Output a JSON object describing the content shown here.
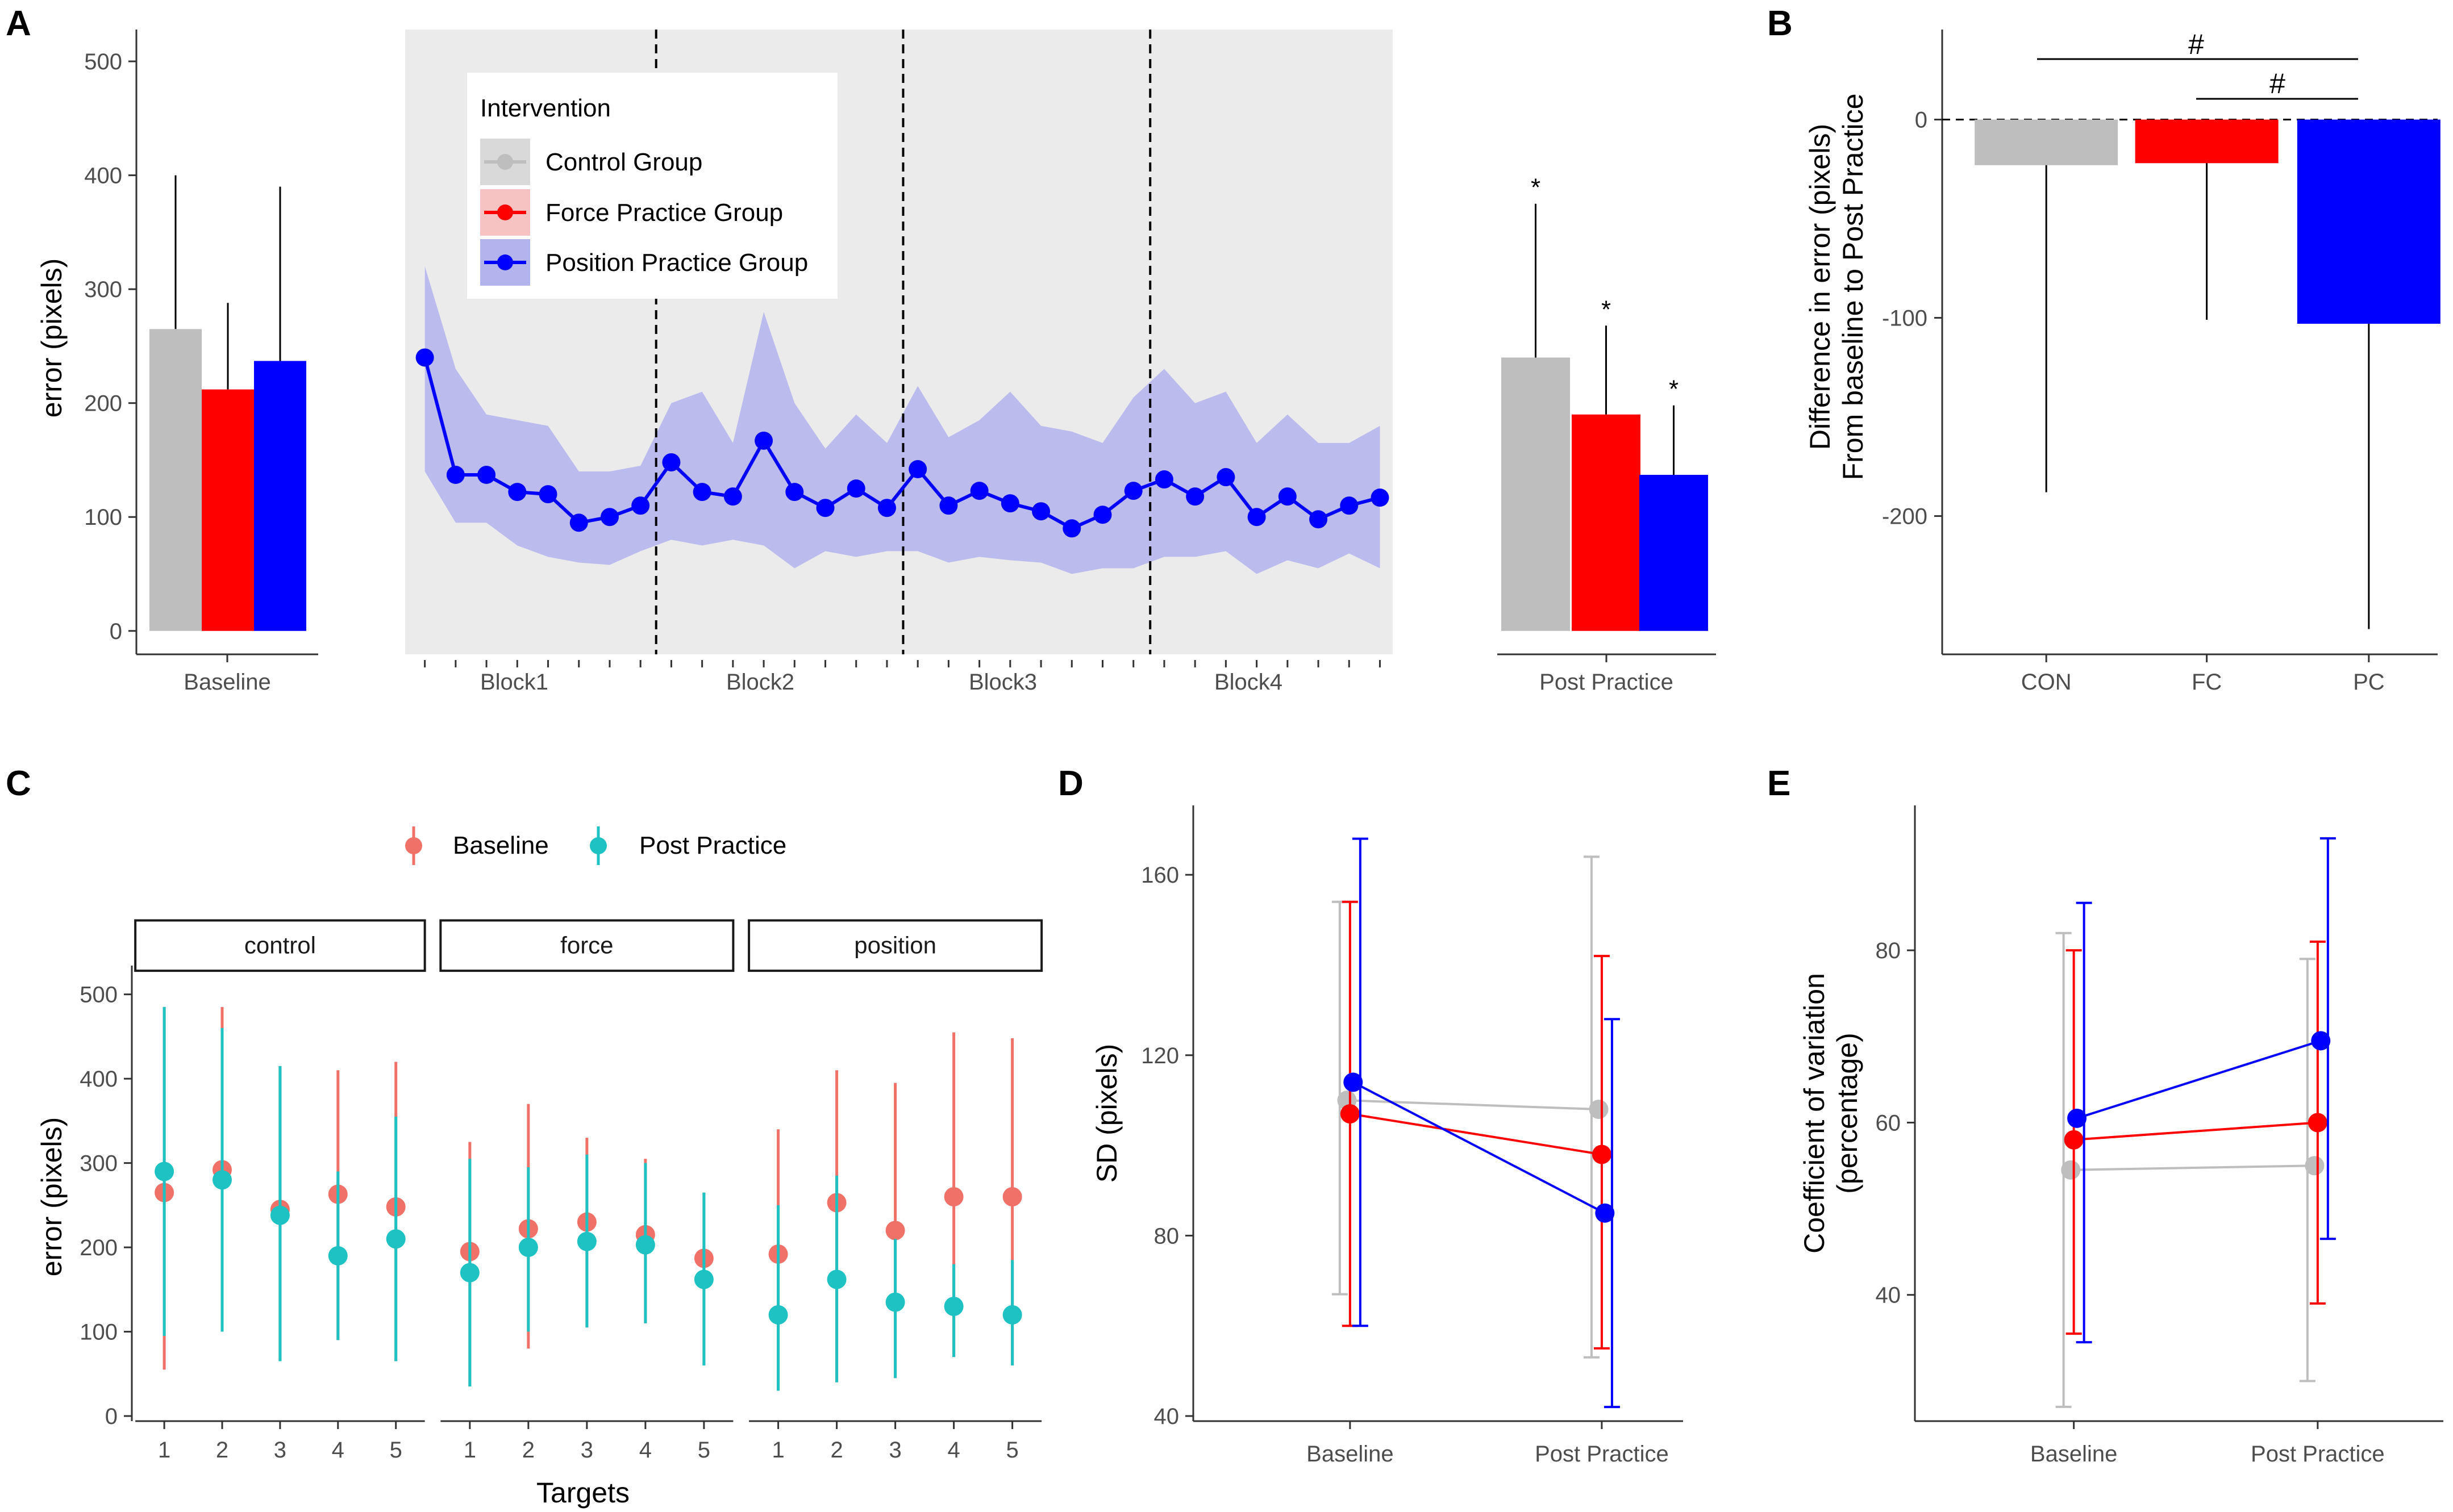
{
  "panel_labels": [
    "A",
    "B",
    "C",
    "D",
    "E"
  ],
  "colors": {
    "control": "#bebebe",
    "force": "#ff0000",
    "position": "#0000ff",
    "baseline": "#f07167",
    "post": "#1ec2c2",
    "panel_bg": "#ebebeb",
    "ribbon": "#b3b3ee"
  },
  "chart_data": [
    {
      "id": "A-baseline",
      "type": "bar",
      "ylabel": "error (pixels)",
      "xlabel": "Baseline",
      "ylim": [
        0,
        520
      ],
      "yticks": [
        "0",
        "100",
        "200",
        "300",
        "400",
        "500"
      ],
      "series": [
        {
          "name": "Control Group",
          "value": 265,
          "err_upper": 400
        },
        {
          "name": "Force Practice Group",
          "value": 212,
          "err_upper": 288
        },
        {
          "name": "Position Practice Group",
          "value": 237,
          "err_upper": 390
        }
      ]
    },
    {
      "id": "A-practice",
      "type": "line",
      "blocks": [
        "Block1",
        "Block2",
        "Block3",
        "Block4"
      ],
      "legend_title": "Intervention",
      "legend": [
        "Control Group",
        "Force Practice Group",
        "Position Practice Group"
      ],
      "ylim": [
        0,
        520
      ],
      "series": [
        {
          "name": "Position Practice Group",
          "values": [
            240,
            137,
            137,
            122,
            120,
            95,
            100,
            110,
            148,
            122,
            118,
            167,
            122,
            108,
            125,
            108,
            142,
            110,
            123,
            112,
            105,
            90,
            102,
            123,
            133,
            118,
            135,
            100,
            118,
            98,
            110,
            117
          ],
          "upper": [
            320,
            230,
            190,
            185,
            180,
            140,
            140,
            145,
            200,
            210,
            165,
            280,
            200,
            160,
            190,
            165,
            215,
            170,
            185,
            210,
            180,
            175,
            165,
            205,
            230,
            200,
            210,
            165,
            190,
            165,
            165,
            180
          ],
          "lower": [
            140,
            95,
            95,
            75,
            65,
            60,
            58,
            70,
            80,
            75,
            80,
            75,
            55,
            70,
            65,
            70,
            70,
            60,
            65,
            62,
            60,
            50,
            55,
            55,
            65,
            65,
            70,
            50,
            62,
            55,
            68,
            55
          ]
        }
      ]
    },
    {
      "id": "A-post",
      "type": "bar",
      "xlabel": "Post Practice",
      "ylim": [
        0,
        520
      ],
      "series": [
        {
          "name": "Control Group",
          "value": 240,
          "err_upper": 375,
          "sig": "*"
        },
        {
          "name": "Force Practice Group",
          "value": 190,
          "err_upper": 268,
          "sig": "*"
        },
        {
          "name": "Position Practice Group",
          "value": 137,
          "err_upper": 198,
          "sig": "*"
        }
      ]
    },
    {
      "id": "B",
      "type": "bar",
      "ylabel": "Difference in error (pixels)\nFrom baseline to Post Practice",
      "ylabel_lines": [
        "Difference in error (pixels)",
        "From baseline to Post Practice"
      ],
      "categories": [
        "CON",
        "FC",
        "PC"
      ],
      "values": [
        -23,
        -22,
        -103
      ],
      "err_lower": [
        -188,
        -101,
        -257
      ],
      "ylim": [
        -260,
        45
      ],
      "yticks": [
        "0",
        "-100",
        "-200"
      ],
      "annotations": [
        "#",
        "#"
      ]
    },
    {
      "id": "C",
      "type": "scatter",
      "facets": [
        "control",
        "force",
        "position"
      ],
      "xlabel": "Targets",
      "ylabel": "error (pixels)",
      "x": [
        "1",
        "2",
        "3",
        "4",
        "5"
      ],
      "yticks": [
        "0",
        "100",
        "200",
        "300",
        "400",
        "500"
      ],
      "ylim": [
        -10,
        520
      ],
      "legend": [
        "Baseline",
        "Post Practice"
      ],
      "series": [
        {
          "name": "Baseline",
          "facet": "control",
          "values": [
            265,
            292,
            245,
            263,
            248
          ],
          "lower": [
            55,
            100,
            65,
            90,
            65
          ],
          "upper": [
            485,
            485,
            415,
            410,
            420
          ]
        },
        {
          "name": "Post Practice",
          "facet": "control",
          "values": [
            290,
            280,
            238,
            190,
            210
          ],
          "lower": [
            95,
            100,
            65,
            90,
            65
          ],
          "upper": [
            485,
            460,
            415,
            290,
            355
          ]
        },
        {
          "name": "Baseline",
          "facet": "force",
          "values": [
            195,
            222,
            230,
            215,
            187
          ],
          "lower": [
            35,
            80,
            105,
            110,
            60
          ],
          "upper": [
            325,
            370,
            330,
            305,
            265
          ]
        },
        {
          "name": "Post Practice",
          "facet": "force",
          "values": [
            170,
            200,
            207,
            203,
            162
          ],
          "lower": [
            35,
            100,
            105,
            110,
            60
          ],
          "upper": [
            305,
            295,
            310,
            300,
            265
          ]
        },
        {
          "name": "Baseline",
          "facet": "position",
          "values": [
            192,
            253,
            220,
            260,
            260
          ],
          "lower": [
            30,
            40,
            45,
            70,
            60
          ],
          "upper": [
            340,
            410,
            395,
            455,
            448
          ]
        },
        {
          "name": "Post Practice",
          "facet": "position",
          "values": [
            120,
            162,
            135,
            130,
            120
          ],
          "lower": [
            30,
            40,
            45,
            70,
            60
          ],
          "upper": [
            250,
            285,
            210,
            180,
            185
          ]
        }
      ]
    },
    {
      "id": "D",
      "type": "line",
      "ylabel": "SD (pixels)",
      "categories": [
        "Baseline",
        "Post Practice"
      ],
      "yticks": [
        "40",
        "80",
        "120",
        "160"
      ],
      "ylim": [
        38,
        171
      ],
      "series": [
        {
          "name": "Control Group",
          "values": [
            110,
            108
          ],
          "lower": [
            67,
            53
          ],
          "upper": [
            154,
            164
          ]
        },
        {
          "name": "Force Practice Group",
          "values": [
            107,
            98
          ],
          "lower": [
            60,
            55
          ],
          "upper": [
            154,
            142
          ]
        },
        {
          "name": "Position Practice Group",
          "values": [
            114,
            85
          ],
          "lower": [
            60,
            42
          ],
          "upper": [
            168,
            128
          ]
        }
      ]
    },
    {
      "id": "E",
      "type": "line",
      "ylabel": "Coefficient of variation\n(percentage)",
      "ylabel_lines": [
        "Coefficient of variation",
        "(percentage)"
      ],
      "categories": [
        "Baseline",
        "Post Practice"
      ],
      "yticks": [
        "40",
        "60",
        "80"
      ],
      "ylim": [
        24.5,
        97.5
      ],
      "series": [
        {
          "name": "Control Group",
          "values": [
            54.5,
            55
          ],
          "lower": [
            27,
            30
          ],
          "upper": [
            82,
            79
          ]
        },
        {
          "name": "Force Practice Group",
          "values": [
            58,
            60
          ],
          "lower": [
            35.5,
            39
          ],
          "upper": [
            80,
            81
          ]
        },
        {
          "name": "Position Practice Group",
          "values": [
            60.5,
            69.5
          ],
          "lower": [
            34.5,
            46.5
          ],
          "upper": [
            85.5,
            93
          ]
        }
      ]
    }
  ]
}
